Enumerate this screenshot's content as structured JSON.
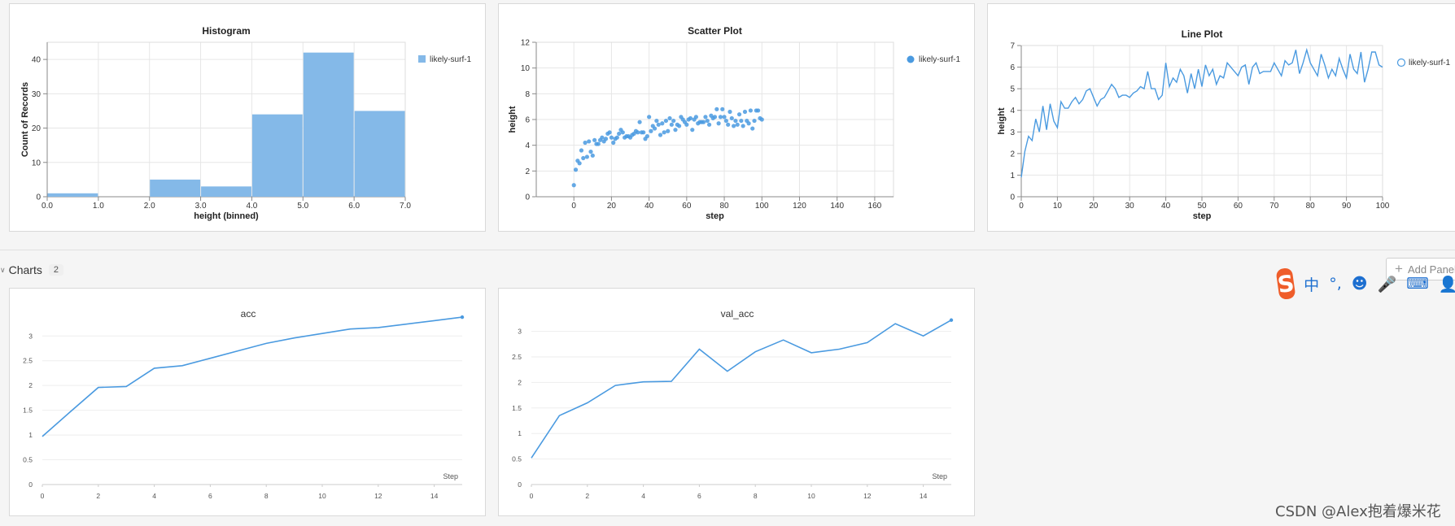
{
  "panels": {
    "histogram": {
      "title": "Histogram",
      "xlabel": "height (binned)",
      "ylabel": "Count of Records",
      "legend": "likely-surf-1",
      "xticks": [
        "0.0",
        "1.0",
        "2.0",
        "3.0",
        "4.0",
        "5.0",
        "6.0",
        "7.0"
      ],
      "yticks": [
        "0",
        "10",
        "20",
        "30",
        "40"
      ]
    },
    "scatter": {
      "title": "Scatter Plot",
      "xlabel": "step",
      "ylabel": "height",
      "legend": "likely-surf-1",
      "xticks": [
        "0",
        "20",
        "40",
        "60",
        "80",
        "100",
        "120",
        "140",
        "160"
      ],
      "yticks": [
        "0",
        "2",
        "4",
        "6",
        "8",
        "10",
        "12"
      ]
    },
    "lineplot": {
      "title": "Line Plot",
      "xlabel": "step",
      "ylabel": "height",
      "legend": "likely-surf-1",
      "xticks": [
        "0",
        "10",
        "20",
        "30",
        "40",
        "50",
        "60",
        "70",
        "80",
        "90",
        "100"
      ],
      "yticks": [
        "0",
        "1",
        "2",
        "3",
        "4",
        "5",
        "6",
        "7"
      ]
    },
    "acc": {
      "title": "acc",
      "step_label": "Step",
      "xticks": [
        "0",
        "2",
        "4",
        "6",
        "8",
        "10",
        "12",
        "14"
      ],
      "yticks": [
        "0",
        "0.5",
        "1",
        "1.5",
        "2",
        "2.5",
        "3"
      ]
    },
    "val_acc": {
      "title": "val_acc",
      "step_label": "Step",
      "xticks": [
        "0",
        "2",
        "4",
        "6",
        "8",
        "10",
        "12",
        "14"
      ],
      "yticks": [
        "0",
        "0.5",
        "1",
        "1.5",
        "2",
        "2.5",
        "3"
      ]
    }
  },
  "section": {
    "title": "Charts",
    "count": "2",
    "add_panel_label": "Add Panel"
  },
  "ime": {
    "logo": "S",
    "icons": [
      "中",
      "°,",
      "☻",
      "🎤",
      "⌨",
      "👤"
    ]
  },
  "watermark": "CSDN @Alex抱着爆米花",
  "colors": {
    "series": "#4a9ae0",
    "bar": "#84b9e8",
    "grid": "#e6e6e6",
    "axis": "#888888"
  },
  "chart_data": [
    {
      "type": "bar",
      "title": "Histogram",
      "xlabel": "height (binned)",
      "ylabel": "Count of Records",
      "bins": [
        [
          0,
          1
        ],
        [
          1,
          2
        ],
        [
          2,
          3
        ],
        [
          3,
          4
        ],
        [
          4,
          5
        ],
        [
          5,
          6
        ],
        [
          6,
          7
        ]
      ],
      "values": [
        1,
        0,
        5,
        3,
        24,
        42,
        25
      ],
      "xlim": [
        0,
        7
      ],
      "ylim": [
        0,
        45
      ],
      "legend": "likely-surf-1"
    },
    {
      "type": "scatter",
      "title": "Scatter Plot",
      "xlabel": "step",
      "ylabel": "height",
      "xlim": [
        -20,
        170
      ],
      "ylim": [
        0,
        12
      ],
      "series": [
        {
          "name": "likely-surf-1",
          "x": [
            0,
            1,
            2,
            3,
            4,
            5,
            6,
            7,
            8,
            9,
            10,
            11,
            12,
            13,
            14,
            15,
            16,
            17,
            18,
            19,
            20,
            21,
            22,
            23,
            24,
            25,
            26,
            27,
            28,
            29,
            30,
            31,
            32,
            33,
            34,
            35,
            36,
            37,
            38,
            39,
            40,
            41,
            42,
            43,
            44,
            45,
            46,
            47,
            48,
            49,
            50,
            51,
            52,
            53,
            54,
            55,
            56,
            57,
            58,
            59,
            60,
            61,
            62,
            63,
            64,
            65,
            66,
            67,
            68,
            69,
            70,
            71,
            72,
            73,
            74,
            75,
            76,
            77,
            78,
            79,
            80,
            81,
            82,
            83,
            84,
            85,
            86,
            87,
            88,
            89,
            90,
            91,
            92,
            93,
            94,
            95,
            96,
            97,
            98,
            99,
            100
          ],
          "y": [
            0.9,
            2.1,
            2.8,
            2.6,
            3.6,
            3.0,
            4.2,
            3.1,
            4.3,
            3.5,
            3.2,
            4.4,
            4.1,
            4.1,
            4.4,
            4.6,
            4.3,
            4.5,
            4.9,
            5.0,
            4.6,
            4.2,
            4.5,
            4.6,
            4.9,
            5.2,
            5.0,
            4.6,
            4.7,
            4.7,
            4.6,
            4.8,
            4.9,
            5.1,
            5.0,
            5.8,
            5.0,
            5.0,
            4.5,
            4.7,
            6.2,
            5.1,
            5.5,
            5.3,
            5.9,
            5.6,
            4.8,
            5.7,
            5.0,
            5.9,
            5.1,
            6.1,
            5.6,
            5.9,
            5.2,
            5.6,
            5.5,
            6.2,
            6.0,
            5.8,
            5.6,
            6.0,
            6.1,
            5.2,
            6.0,
            6.2,
            5.7,
            5.8,
            5.8,
            5.8,
            6.2,
            5.9,
            5.6,
            6.3,
            6.1,
            6.2,
            6.8,
            5.7,
            6.2,
            6.8,
            6.2,
            5.9,
            5.6,
            6.6,
            6.1,
            5.5,
            5.9,
            5.6,
            6.4,
            5.9,
            5.5,
            6.6,
            5.9,
            5.7,
            6.7,
            5.3,
            5.9,
            6.7,
            6.7,
            6.1,
            6.0
          ]
        }
      ]
    },
    {
      "type": "line",
      "title": "Line Plot",
      "xlabel": "step",
      "ylabel": "height",
      "xlim": [
        0,
        100
      ],
      "ylim": [
        0,
        7
      ],
      "series": [
        {
          "name": "likely-surf-1",
          "x": [
            0,
            1,
            2,
            3,
            4,
            5,
            6,
            7,
            8,
            9,
            10,
            11,
            12,
            13,
            14,
            15,
            16,
            17,
            18,
            19,
            20,
            21,
            22,
            23,
            24,
            25,
            26,
            27,
            28,
            29,
            30,
            31,
            32,
            33,
            34,
            35,
            36,
            37,
            38,
            39,
            40,
            41,
            42,
            43,
            44,
            45,
            46,
            47,
            48,
            49,
            50,
            51,
            52,
            53,
            54,
            55,
            56,
            57,
            58,
            59,
            60,
            61,
            62,
            63,
            64,
            65,
            66,
            67,
            68,
            69,
            70,
            71,
            72,
            73,
            74,
            75,
            76,
            77,
            78,
            79,
            80,
            81,
            82,
            83,
            84,
            85,
            86,
            87,
            88,
            89,
            90,
            91,
            92,
            93,
            94,
            95,
            96,
            97,
            98,
            99,
            100
          ],
          "y": [
            0.9,
            2.1,
            2.8,
            2.6,
            3.6,
            3.0,
            4.2,
            3.1,
            4.3,
            3.5,
            3.2,
            4.4,
            4.1,
            4.1,
            4.4,
            4.6,
            4.3,
            4.5,
            4.9,
            5.0,
            4.6,
            4.2,
            4.5,
            4.6,
            4.9,
            5.2,
            5.0,
            4.6,
            4.7,
            4.7,
            4.6,
            4.8,
            4.9,
            5.1,
            5.0,
            5.8,
            5.0,
            5.0,
            4.5,
            4.7,
            6.2,
            5.1,
            5.5,
            5.3,
            5.9,
            5.6,
            4.8,
            5.7,
            5.0,
            5.9,
            5.1,
            6.1,
            5.6,
            5.9,
            5.2,
            5.6,
            5.5,
            6.2,
            6.0,
            5.8,
            5.6,
            6.0,
            6.1,
            5.2,
            6.0,
            6.2,
            5.7,
            5.8,
            5.8,
            5.8,
            6.2,
            5.9,
            5.6,
            6.3,
            6.1,
            6.2,
            6.8,
            5.7,
            6.2,
            6.8,
            6.2,
            5.9,
            5.6,
            6.6,
            6.1,
            5.5,
            5.9,
            5.6,
            6.4,
            5.9,
            5.5,
            6.6,
            5.9,
            5.7,
            6.7,
            5.3,
            5.9,
            6.7,
            6.7,
            6.1,
            6.0
          ]
        }
      ]
    },
    {
      "type": "line",
      "title": "acc",
      "xlabel": "Step",
      "xlim": [
        0,
        15
      ],
      "ylim": [
        0,
        3.3
      ],
      "series": [
        {
          "name": "acc",
          "x": [
            0,
            1,
            2,
            3,
            4,
            5,
            6,
            7,
            8,
            9,
            10,
            11,
            12,
            13,
            14,
            15
          ],
          "y": [
            0.97,
            1.47,
            1.96,
            1.98,
            2.35,
            2.4,
            2.55,
            2.7,
            2.85,
            2.96,
            3.05,
            3.14,
            3.17,
            3.24,
            3.31,
            3.38
          ]
        }
      ]
    },
    {
      "type": "line",
      "title": "val_acc",
      "xlabel": "Step",
      "xlim": [
        0,
        15
      ],
      "ylim": [
        0,
        3.2
      ],
      "series": [
        {
          "name": "val_acc",
          "x": [
            0,
            1,
            2,
            3,
            4,
            5,
            6,
            7,
            8,
            9,
            10,
            11,
            12,
            13,
            14,
            15
          ],
          "y": [
            0.52,
            1.35,
            1.6,
            1.94,
            2.01,
            2.02,
            2.65,
            2.22,
            2.6,
            2.83,
            2.58,
            2.65,
            2.78,
            3.15,
            2.91,
            3.22
          ]
        }
      ]
    }
  ]
}
